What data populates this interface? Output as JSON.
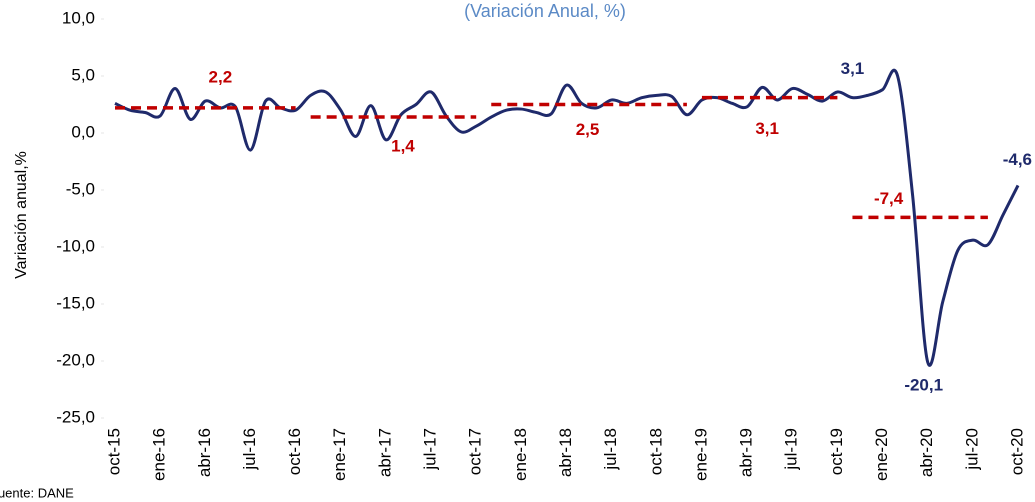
{
  "chart_data": {
    "type": "line",
    "title": "(Variación Anual, %)",
    "y_label": "Variación anual,%",
    "source": "Fuente: DANE",
    "categories": [
      "oct-15",
      null,
      null,
      "ene-16",
      null,
      null,
      "abr-16",
      null,
      null,
      "jul-16",
      null,
      null,
      "oct-16",
      null,
      null,
      "ene-17",
      null,
      null,
      "abr-17",
      null,
      null,
      "jul-17",
      null,
      null,
      "oct-17",
      null,
      null,
      "ene-18",
      null,
      null,
      "abr-18",
      null,
      null,
      "jul-18",
      null,
      null,
      "oct-18",
      null,
      null,
      "ene-19",
      null,
      null,
      "abr-19",
      null,
      null,
      "jul-19",
      null,
      null,
      "oct-19",
      null,
      null,
      "ene-20",
      null,
      null,
      "abr-20",
      null,
      null,
      "jul-20",
      null,
      null,
      "oct-20"
    ],
    "ylim": [
      -25,
      10
    ],
    "yticks": [
      {
        "value": 10,
        "label": "10,0"
      },
      {
        "value": 5,
        "label": "5,0"
      },
      {
        "value": 0,
        "label": "0,0"
      },
      {
        "value": -5,
        "label": "-5,0"
      },
      {
        "value": -10,
        "label": "-10,0"
      },
      {
        "value": -15,
        "label": "-15,0"
      },
      {
        "value": -20,
        "label": "-20,0"
      },
      {
        "value": -25,
        "label": "-25,0"
      }
    ],
    "grid": false,
    "series": [
      {
        "color": "#1f2a6b",
        "dashed": false,
        "values": [
          2.6,
          2.0,
          1.8,
          1.5,
          3.9,
          1.2,
          2.8,
          2.2,
          2.3,
          -1.5,
          2.8,
          2.2,
          2.0,
          3.3,
          3.6,
          2.0,
          -0.3,
          2.4,
          -0.6,
          1.6,
          2.5,
          3.6,
          1.5,
          0.1,
          0.6,
          1.4,
          2.0,
          2.1,
          1.8,
          1.7,
          4.2,
          2.6,
          2.2,
          2.9,
          2.6,
          3.1,
          3.3,
          3.2,
          1.6,
          2.9,
          3.1,
          2.6,
          2.3,
          4.0,
          2.9,
          3.9,
          3.4,
          2.8,
          3.6,
          3.1,
          3.3,
          3.8,
          5.0,
          -5.5,
          -20.1,
          -14.8,
          -10.3,
          -9.4,
          -9.8,
          -7.2,
          -4.6
        ],
        "value_labels": [
          null,
          null,
          null,
          null,
          null,
          null,
          null,
          null,
          null,
          null,
          null,
          null,
          null,
          null,
          null,
          null,
          null,
          null,
          null,
          null,
          null,
          null,
          null,
          null,
          null,
          null,
          null,
          null,
          null,
          null,
          null,
          null,
          null,
          null,
          null,
          null,
          null,
          null,
          null,
          null,
          null,
          null,
          null,
          null,
          null,
          null,
          null,
          null,
          null,
          "3,1",
          null,
          null,
          null,
          null,
          "-20,1",
          null,
          null,
          null,
          null,
          null,
          "-4,6"
        ]
      },
      {
        "color": "#c00000",
        "dashed": true,
        "values": [
          2.2,
          2.2,
          2.2,
          2.2,
          2.2,
          2.2,
          2.2,
          2.2,
          2.2,
          2.2,
          2.2,
          2.2,
          2.2,
          null,
          null,
          null,
          null,
          null,
          null,
          null,
          null,
          null,
          null,
          null,
          null,
          null,
          null,
          null,
          null,
          null,
          null,
          null,
          null,
          null,
          null,
          null,
          null,
          null,
          null,
          null,
          null,
          null,
          null,
          null,
          null,
          null,
          null,
          null,
          null,
          null,
          null,
          null,
          null,
          null,
          null,
          null,
          null,
          null,
          null,
          null,
          null
        ],
        "value_labels": [
          null,
          null,
          null,
          null,
          null,
          null,
          null,
          "2,2",
          null,
          null,
          null,
          null,
          null,
          null,
          null,
          null,
          null,
          null,
          null,
          null,
          null,
          null,
          null,
          null,
          null,
          null,
          null,
          null,
          null,
          null,
          null,
          null,
          null,
          null,
          null,
          null,
          null,
          null,
          null,
          null,
          null,
          null,
          null,
          null,
          null,
          null,
          null,
          null,
          null,
          null,
          null,
          null,
          null,
          null,
          null,
          null,
          null,
          null,
          null,
          null,
          null
        ]
      },
      {
        "color": "#c00000",
        "dashed": true,
        "values": [
          null,
          null,
          null,
          null,
          null,
          null,
          null,
          null,
          null,
          null,
          null,
          null,
          null,
          1.4,
          1.4,
          1.4,
          1.4,
          1.4,
          1.4,
          1.4,
          1.4,
          1.4,
          1.4,
          1.4,
          1.4,
          null,
          null,
          null,
          null,
          null,
          null,
          null,
          null,
          null,
          null,
          null,
          null,
          null,
          null,
          null,
          null,
          null,
          null,
          null,
          null,
          null,
          null,
          null,
          null,
          null,
          null,
          null,
          null,
          null,
          null,
          null,
          null,
          null,
          null,
          null,
          null
        ],
        "value_labels": [
          null,
          null,
          null,
          null,
          null,
          null,
          null,
          null,
          null,
          null,
          null,
          null,
          null,
          null,
          null,
          null,
          null,
          null,
          null,
          "1,4",
          null,
          null,
          null,
          null,
          null,
          null,
          null,
          null,
          null,
          null,
          null,
          null,
          null,
          null,
          null,
          null,
          null,
          null,
          null,
          null,
          null,
          null,
          null,
          null,
          null,
          null,
          null,
          null,
          null,
          null,
          null,
          null,
          null,
          null,
          null,
          null,
          null,
          null,
          null,
          null,
          null
        ]
      },
      {
        "color": "#c00000",
        "dashed": true,
        "values": [
          null,
          null,
          null,
          null,
          null,
          null,
          null,
          null,
          null,
          null,
          null,
          null,
          null,
          null,
          null,
          null,
          null,
          null,
          null,
          null,
          null,
          null,
          null,
          null,
          null,
          2.5,
          2.5,
          2.5,
          2.5,
          2.5,
          2.5,
          2.5,
          2.5,
          2.5,
          2.5,
          2.5,
          2.5,
          2.5,
          2.5,
          null,
          null,
          null,
          null,
          null,
          null,
          null,
          null,
          null,
          null,
          null,
          null,
          null,
          null,
          null,
          null,
          null,
          null,
          null,
          null,
          null,
          null
        ],
        "value_labels": [
          null,
          null,
          null,
          null,
          null,
          null,
          null,
          null,
          null,
          null,
          null,
          null,
          null,
          null,
          null,
          null,
          null,
          null,
          null,
          null,
          null,
          null,
          null,
          null,
          null,
          null,
          null,
          null,
          null,
          null,
          null,
          "2,5",
          null,
          null,
          null,
          null,
          null,
          null,
          null,
          null,
          null,
          null,
          null,
          null,
          null,
          null,
          null,
          null,
          null,
          null,
          null,
          null,
          null,
          null,
          null,
          null,
          null,
          null,
          null,
          null,
          null
        ]
      },
      {
        "color": "#c00000",
        "dashed": true,
        "values": [
          null,
          null,
          null,
          null,
          null,
          null,
          null,
          null,
          null,
          null,
          null,
          null,
          null,
          null,
          null,
          null,
          null,
          null,
          null,
          null,
          null,
          null,
          null,
          null,
          null,
          null,
          null,
          null,
          null,
          null,
          null,
          null,
          null,
          null,
          null,
          null,
          null,
          null,
          null,
          3.1,
          3.1,
          3.1,
          3.1,
          3.1,
          3.1,
          3.1,
          3.1,
          3.1,
          3.1,
          null,
          null,
          null,
          null,
          null,
          null,
          null,
          null,
          null,
          null,
          null,
          null
        ],
        "value_labels": [
          null,
          null,
          null,
          null,
          null,
          null,
          null,
          null,
          null,
          null,
          null,
          null,
          null,
          null,
          null,
          null,
          null,
          null,
          null,
          null,
          null,
          null,
          null,
          null,
          null,
          null,
          null,
          null,
          null,
          null,
          null,
          null,
          null,
          null,
          null,
          null,
          null,
          null,
          null,
          null,
          null,
          null,
          null,
          "3,1",
          null,
          null,
          null,
          null,
          null,
          null,
          null,
          null,
          null,
          null,
          null,
          null,
          null,
          null,
          null,
          null,
          null
        ]
      },
      {
        "color": "#c00000",
        "dashed": true,
        "values": [
          null,
          null,
          null,
          null,
          null,
          null,
          null,
          null,
          null,
          null,
          null,
          null,
          null,
          null,
          null,
          null,
          null,
          null,
          null,
          null,
          null,
          null,
          null,
          null,
          null,
          null,
          null,
          null,
          null,
          null,
          null,
          null,
          null,
          null,
          null,
          null,
          null,
          null,
          null,
          null,
          null,
          null,
          null,
          null,
          null,
          null,
          null,
          null,
          null,
          -7.4,
          -7.4,
          -7.4,
          -7.4,
          -7.4,
          -7.4,
          -7.4,
          -7.4,
          -7.4,
          -7.4,
          null,
          null
        ],
        "value_labels": [
          null,
          null,
          null,
          null,
          null,
          null,
          null,
          null,
          null,
          null,
          null,
          null,
          null,
          null,
          null,
          null,
          null,
          null,
          null,
          null,
          null,
          null,
          null,
          null,
          null,
          null,
          null,
          null,
          null,
          null,
          null,
          null,
          null,
          null,
          null,
          null,
          null,
          null,
          null,
          null,
          null,
          null,
          null,
          null,
          null,
          null,
          null,
          null,
          null,
          null,
          null,
          null,
          "-7,4",
          null,
          null,
          null,
          null,
          null,
          null,
          null,
          null
        ]
      }
    ]
  }
}
